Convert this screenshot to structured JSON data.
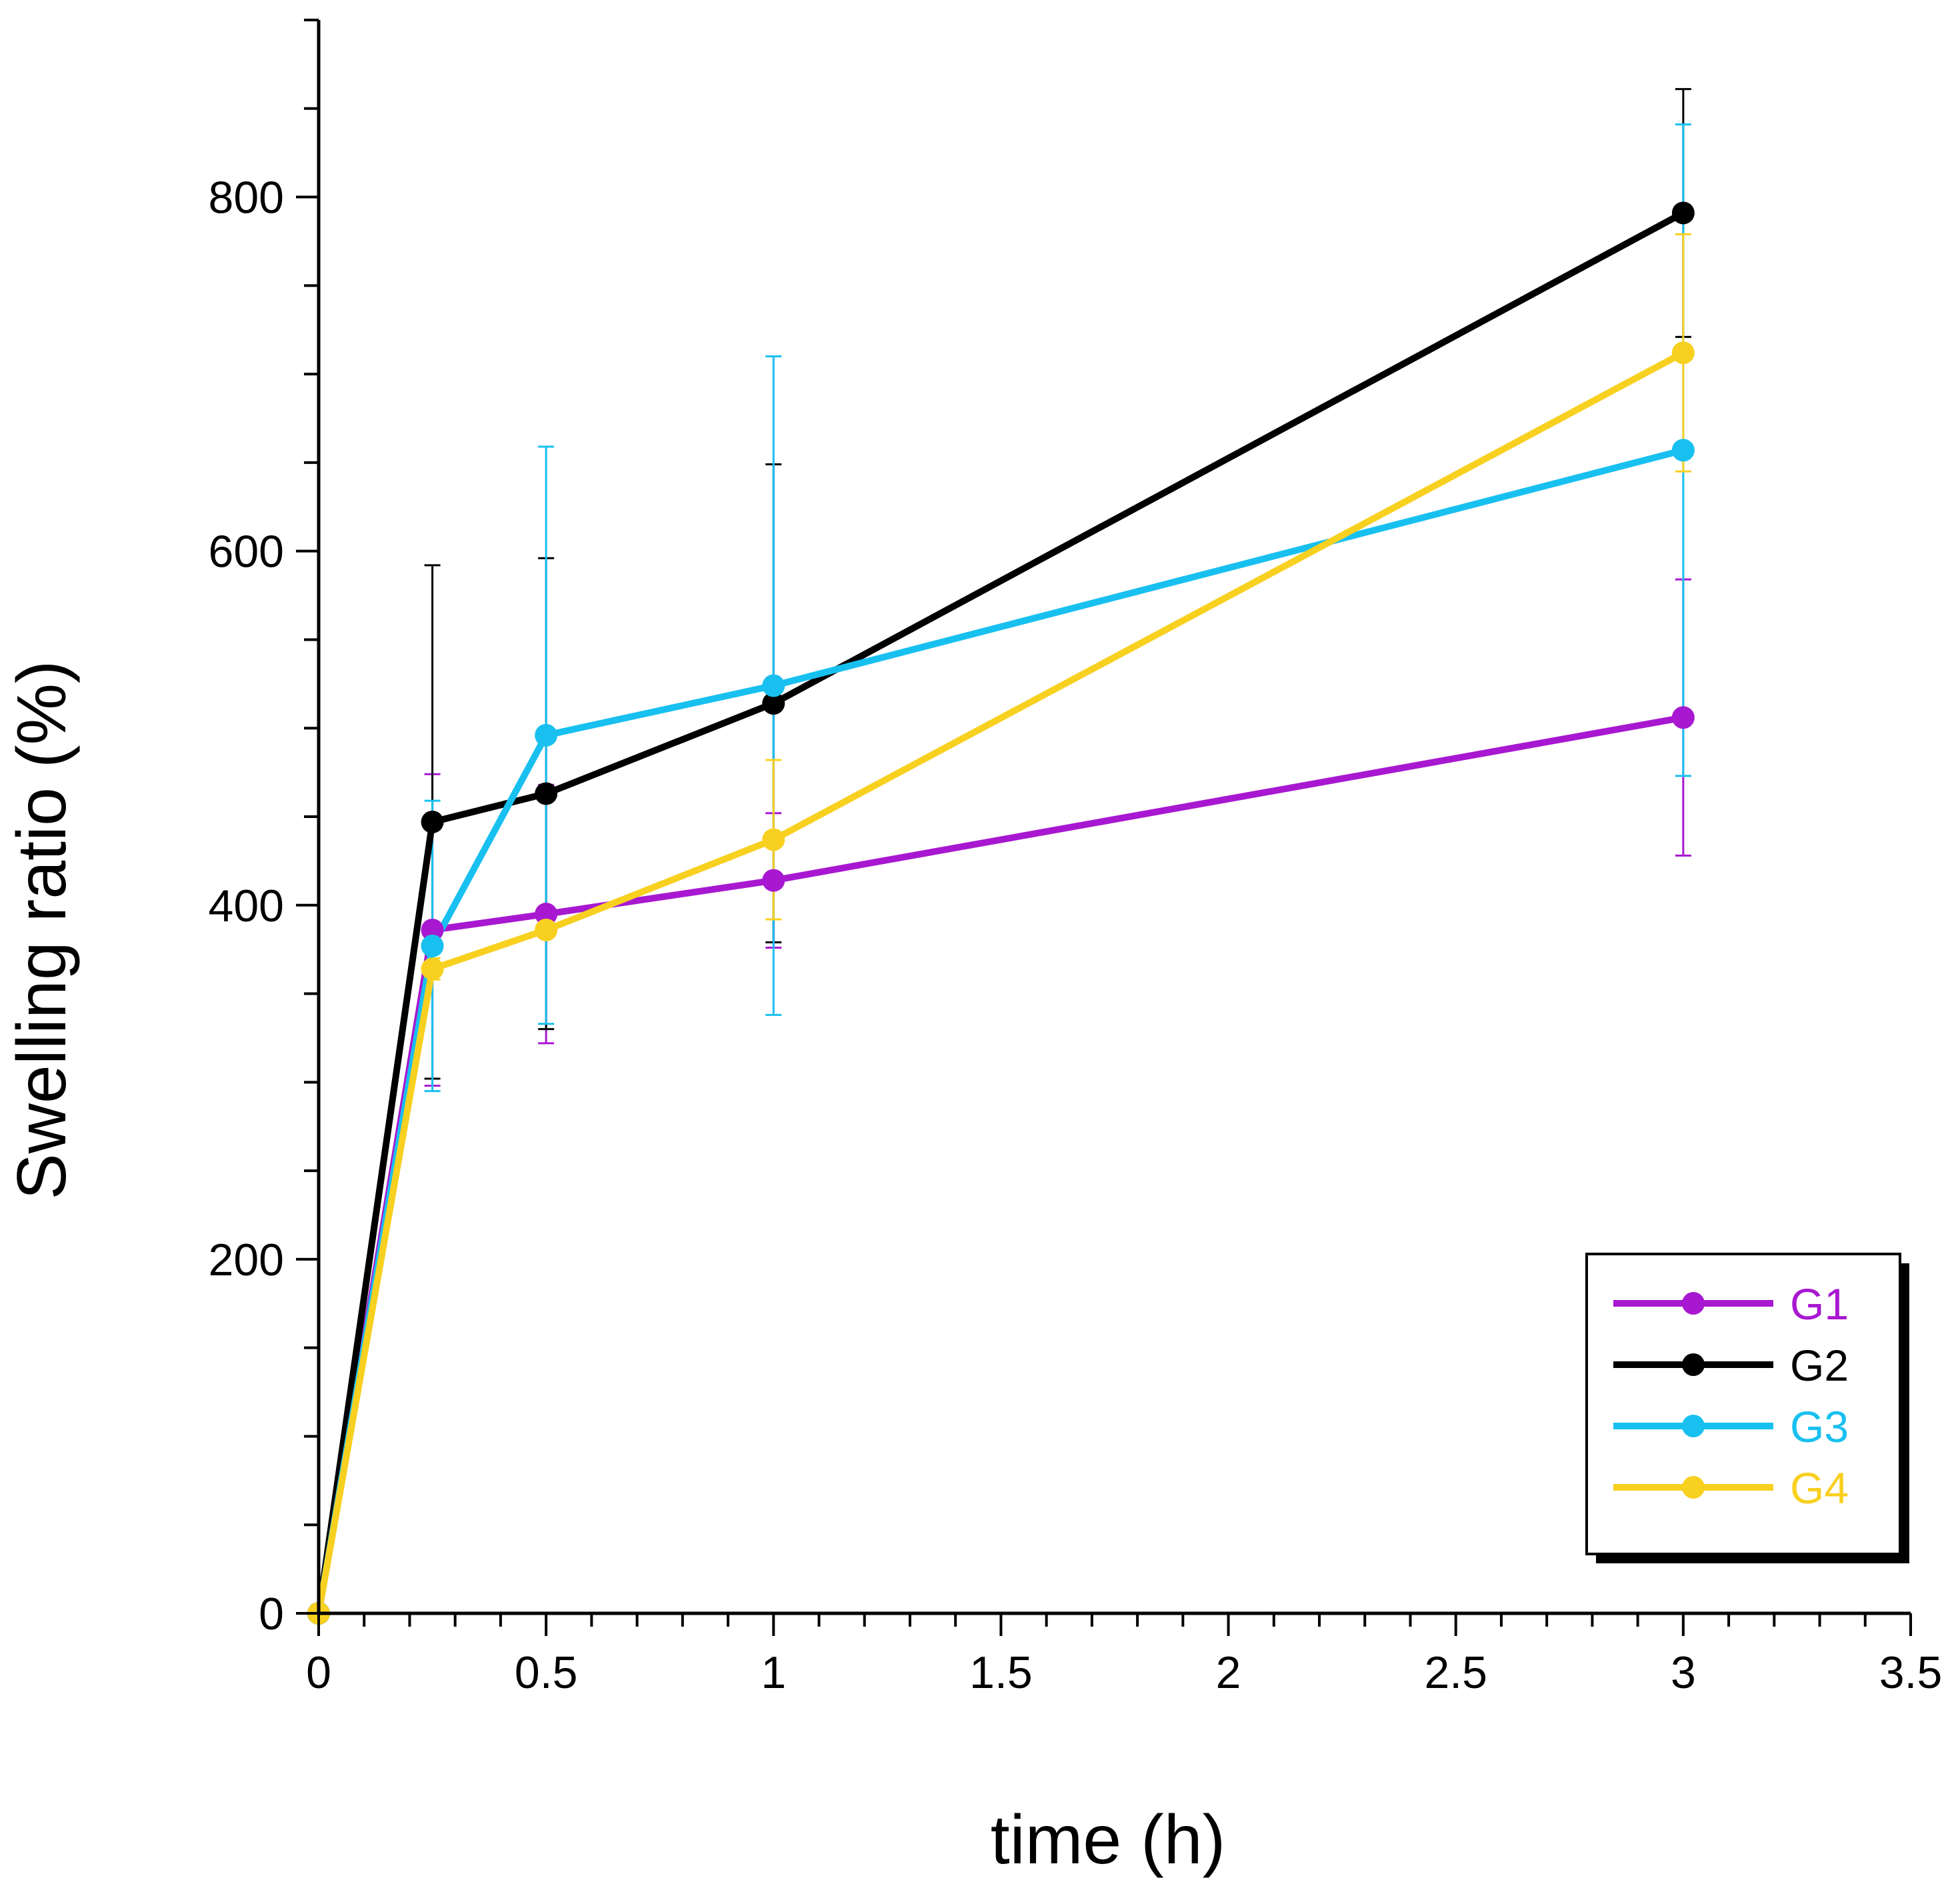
{
  "chart_data": {
    "type": "line",
    "title": "",
    "xlabel": "time (h)",
    "ylabel": "Swelling ratio (%)",
    "xlim": [
      0,
      3.5
    ],
    "ylim": [
      0,
      900
    ],
    "x_major_ticks": [
      0,
      0.5,
      1,
      1.5,
      2,
      2.5,
      3,
      3.5
    ],
    "x_tick_labels": [
      "0",
      "0.5",
      "1",
      "1.5",
      "2",
      "2.5",
      "3",
      "3.5"
    ],
    "y_major_ticks": [
      0,
      200,
      400,
      600,
      800
    ],
    "y_tick_labels": [
      "0",
      "200",
      "400",
      "600",
      "800"
    ],
    "grid": false,
    "legend_position": "bottom-right",
    "x": [
      0,
      0.25,
      0.5,
      1,
      3
    ],
    "series": [
      {
        "name": "G1",
        "color": "#a818d0",
        "values": [
          0,
          386,
          395,
          414,
          506
        ],
        "errors": [
          0,
          88,
          73,
          38,
          78
        ]
      },
      {
        "name": "G2",
        "color": "#000000",
        "values": [
          0,
          447,
          463,
          514,
          791
        ],
        "errors": [
          0,
          145,
          133,
          135,
          70
        ]
      },
      {
        "name": "G3",
        "color": "#18c0f0",
        "values": [
          0,
          377,
          496,
          524,
          657
        ],
        "errors": [
          0,
          82,
          163,
          186,
          184
        ]
      },
      {
        "name": "G4",
        "color": "#f8d020",
        "values": [
          0,
          364,
          386,
          437,
          712
        ],
        "errors": [
          0,
          6,
          3,
          45,
          67
        ]
      }
    ]
  }
}
